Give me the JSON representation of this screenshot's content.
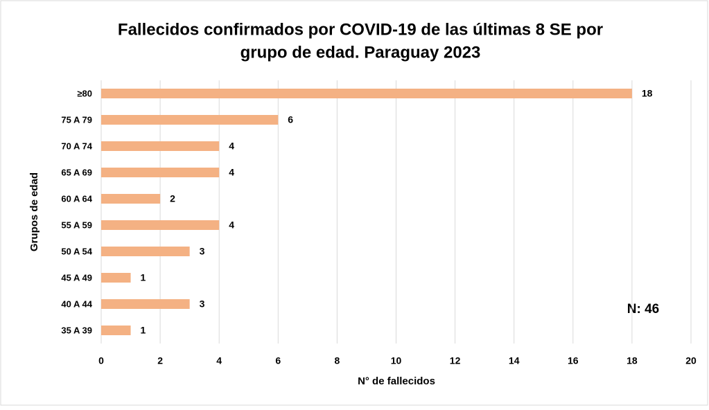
{
  "chart_data": {
    "type": "bar",
    "orientation": "horizontal",
    "title": [
      "Fallecidos confirmados por COVID-19 de las últimas 8 SE por",
      "grupo de edad. Paraguay  2023"
    ],
    "x_label": "N° de fallecidos",
    "y_label": "Grupos de edad",
    "categories": [
      "≥80",
      "75 A 79",
      "70 A 74",
      "65 A 69",
      "60 A 64",
      "55 A 59",
      "50 A 54",
      "45 A 49",
      "40 A 44",
      "35 A 39"
    ],
    "values": [
      18,
      6,
      4,
      4,
      2,
      4,
      3,
      1,
      3,
      1
    ],
    "color": "#f4b183",
    "xlim": [
      0,
      20
    ],
    "xticks": [
      0,
      2,
      4,
      6,
      8,
      10,
      12,
      14,
      16,
      18,
      20
    ],
    "grid": true,
    "annotation": "N: 46"
  }
}
